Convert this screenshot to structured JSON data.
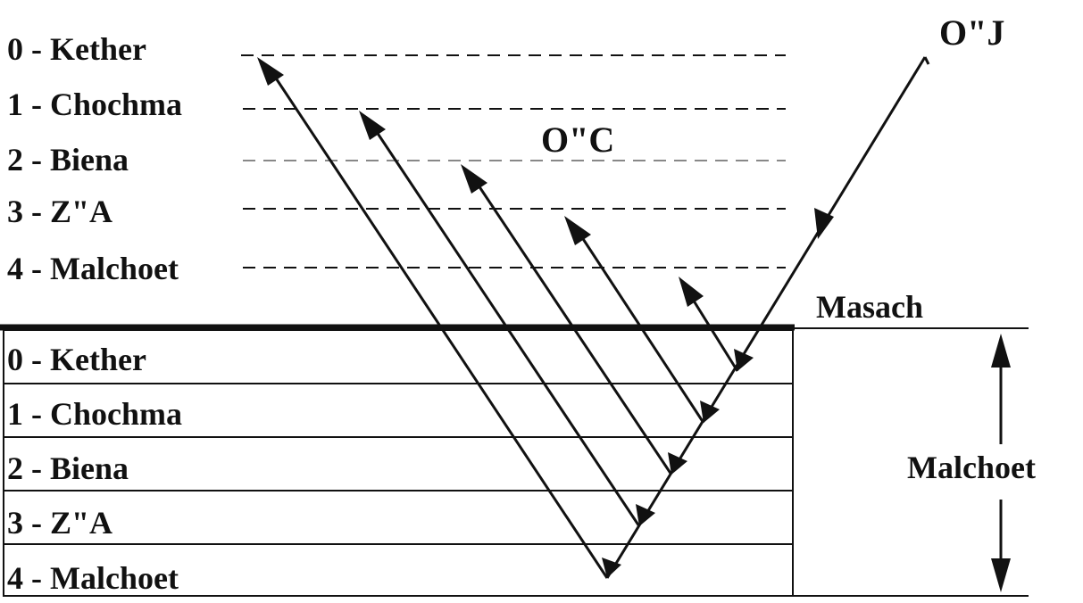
{
  "colors": {
    "ink": "#111111",
    "background": "#ffffff",
    "guide": "#888888"
  },
  "upper_levels": [
    "0 - Kether",
    "1 - Chochma",
    "2 - Biena",
    "3 - Z\"A",
    "4 - Malchoet"
  ],
  "lower_levels": [
    "0 - Kether",
    "1 - Chochma",
    "2 - Biena",
    "3 - Z\"A",
    "4 - Malchoet"
  ],
  "labels": {
    "direct_light": "O\"J",
    "returning_light": "O\"C",
    "screen": "Masach",
    "malchoet": "Malchoet"
  }
}
